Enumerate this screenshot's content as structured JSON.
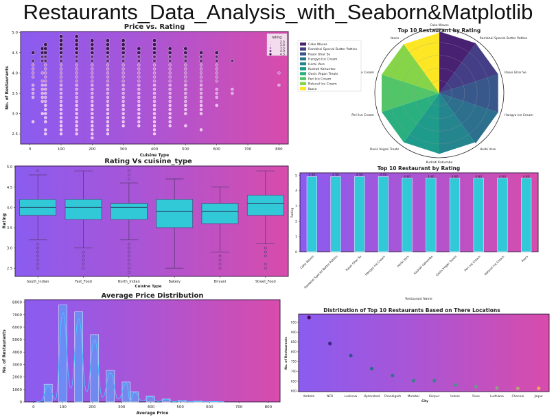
{
  "page": {
    "title": "Restaurants_Data_Analysis_with_Seaborn&Matplotlib"
  },
  "colors": {
    "grad_left": "#8a5cf0",
    "grad_mid": "#a955d6",
    "grad_right": "#d84cab",
    "cyan": "#31c8d8",
    "hist_bar": "#4fb3ff",
    "kde": "#44c8ff"
  },
  "chart_data": [
    {
      "id": "price_vs_rating",
      "type": "scatter",
      "title": "Price vs. Rating",
      "xlabel": "Cuisine Type",
      "ylabel": "No. of Restaurants",
      "xlim": [
        -30,
        830
      ],
      "ylim": [
        2.25,
        5.02
      ],
      "xticks": [
        0,
        100,
        200,
        300,
        400,
        500,
        600,
        700,
        800
      ],
      "yticks": [
        2.5,
        3.0,
        3.5,
        4.0,
        4.5,
        5.0
      ],
      "legend": {
        "title": "rating",
        "entries": [
          "2.5",
          "3.0",
          "3.5",
          "4.0",
          "4.5"
        ],
        "position": "upper right"
      },
      "columns": [
        {
          "x": 10,
          "ratings": [
            2.8,
            3.4,
            3.5,
            3.6,
            3.7,
            3.9,
            4.0,
            4.1,
            4.2,
            4.3,
            4.5
          ]
        },
        {
          "x": 40,
          "ratings": [
            3.0,
            3.3,
            3.4,
            3.5,
            3.6,
            3.7,
            3.8,
            4.0,
            4.3,
            4.4,
            4.5,
            4.6
          ]
        },
        {
          "x": 50,
          "ratings": [
            2.5,
            2.6,
            2.8,
            2.9,
            3.0,
            3.1,
            3.2,
            3.3,
            3.4,
            3.5,
            3.6,
            3.7,
            3.8,
            3.9,
            4.0,
            4.1,
            4.2,
            4.3,
            4.4,
            4.5,
            4.6,
            4.7
          ]
        },
        {
          "x": 100,
          "range": [
            2.5,
            4.9
          ]
        },
        {
          "x": 150,
          "range": [
            2.5,
            4.9
          ]
        },
        {
          "x": 200,
          "range": [
            2.4,
            4.8
          ]
        },
        {
          "x": 250,
          "range": [
            2.5,
            4.8
          ]
        },
        {
          "x": 300,
          "range": [
            2.7,
            4.8
          ]
        },
        {
          "x": 350,
          "range": [
            2.7,
            4.6
          ]
        },
        {
          "x": 400,
          "range": [
            2.5,
            4.8
          ]
        },
        {
          "x": 450,
          "range": [
            2.7,
            4.6
          ]
        },
        {
          "x": 500,
          "range": [
            3.0,
            4.6
          ],
          "extra": [
            2.7
          ]
        },
        {
          "x": 550,
          "range": [
            3.0,
            4.5
          ],
          "extra": [
            2.6
          ]
        },
        {
          "x": 600,
          "ratings": [
            3.2,
            3.4,
            3.5,
            3.6,
            3.8,
            3.9,
            4.0,
            4.1,
            4.2,
            4.3,
            4.4,
            4.5
          ]
        },
        {
          "x": 650,
          "ratings": [
            3.5,
            3.6,
            4.3
          ]
        },
        {
          "x": 800,
          "ratings": [
            3.7,
            4.0
          ]
        }
      ]
    },
    {
      "id": "top10_polar",
      "type": "polar_bar",
      "title": "Top 10 Restaurant by Rating",
      "categories": [
        "Cake Waves",
        "Rambhai Special Butter Patties",
        "Rasoi Ghar Se",
        "Hangyo Ice Cream",
        "Herbi Vore",
        "Kudrati Kahumbo",
        "Oasis Vegan Treats",
        "Peri Ice Cream",
        "Natural Ice Cream",
        "Ibaco"
      ],
      "values": [
        4.9,
        4.9,
        4.9,
        4.9,
        4.8,
        4.8,
        4.8,
        4.8,
        4.8,
        4.8
      ],
      "colors": [
        "#482173",
        "#433e85",
        "#38588c",
        "#2d708e",
        "#25858e",
        "#1e9b8a",
        "#2ab07f",
        "#52c569",
        "#86d549",
        "#fde725"
      ],
      "legend_position": "left"
    },
    {
      "id": "rating_vs_cuisine",
      "type": "box",
      "title": "Rating Vs cuisine_type",
      "xlabel": "Cuisine Type",
      "ylabel": "Rating",
      "ylim": [
        2.3,
        5.02
      ],
      "yticks": [
        2.5,
        3.0,
        3.5,
        4.0,
        4.5,
        5.0
      ],
      "categories": [
        "South_Indian",
        "Fast_Food",
        "North_Indian",
        "Bakery",
        "Biryani",
        "Street_Food"
      ],
      "boxes": [
        {
          "q1": 3.8,
          "median": 4.0,
          "q3": 4.2,
          "whislo": 3.2,
          "whishi": 4.8,
          "fliers": [
            2.5,
            2.6,
            2.7,
            2.8,
            2.9,
            3.0,
            3.1,
            4.9
          ]
        },
        {
          "q1": 3.7,
          "median": 4.0,
          "q3": 4.2,
          "whislo": 3.0,
          "whishi": 4.9,
          "fliers": [
            2.5,
            2.6,
            2.7,
            2.8,
            2.9
          ]
        },
        {
          "q1": 3.7,
          "median": 4.0,
          "q3": 4.1,
          "whislo": 3.2,
          "whishi": 4.6,
          "fliers": [
            2.4,
            2.5,
            2.6,
            2.7,
            2.8,
            2.9,
            3.0,
            3.1,
            4.7,
            4.8,
            4.9
          ]
        },
        {
          "q1": 3.5,
          "median": 3.9,
          "q3": 4.2,
          "whislo": 2.5,
          "whishi": 4.7,
          "fliers": []
        },
        {
          "q1": 3.6,
          "median": 3.9,
          "q3": 4.1,
          "whislo": 2.9,
          "whishi": 4.5,
          "fliers": [
            2.5,
            2.6,
            2.7,
            2.8
          ]
        },
        {
          "q1": 3.8,
          "median": 4.1,
          "q3": 4.3,
          "whislo": 3.1,
          "whishi": 4.9,
          "fliers": [
            2.5,
            2.6,
            2.8,
            2.9,
            3.0
          ]
        }
      ]
    },
    {
      "id": "top10_bar",
      "type": "bar",
      "title": "Top 10 Restaurant by Rating",
      "xlabel": "Restaurant Name",
      "ylabel": "Rating",
      "ylim": [
        0,
        5.15
      ],
      "yticks": [
        0,
        1,
        2,
        3,
        4,
        5
      ],
      "categories": [
        "Cake Waves",
        "Rambhai Special Butter Patties",
        "Rasoi Ghar Se",
        "Hangyo Ice Cream",
        "Herbi Vore",
        "Kudrati Kahumbo",
        "Oasis Vegan Treats",
        "Peri Ice Cream",
        "Natural Ice Cream",
        "Ibaco"
      ],
      "values": [
        4.9,
        4.9,
        4.9,
        4.9,
        4.8,
        4.8,
        4.8,
        4.8,
        4.8,
        4.8
      ],
      "labels": [
        "4.90",
        "4.90",
        "4.90",
        "4.90",
        "4.80",
        "4.80",
        "4.80",
        "4.80",
        "4.80",
        "4.80"
      ]
    },
    {
      "id": "avg_price_hist",
      "type": "histogram",
      "title": "Average Price Distribution",
      "xlabel": "Average Price",
      "ylabel": "No. of Restaurants",
      "xlim": [
        -30,
        840
      ],
      "ylim": [
        0,
        8200
      ],
      "xticks": [
        0,
        100,
        200,
        300,
        400,
        500,
        600,
        700,
        800
      ],
      "yticks": [
        0,
        1000,
        2000,
        3000,
        4000,
        5000,
        6000,
        7000,
        8000
      ],
      "bins": [
        {
          "x0": 36,
          "x1": 64,
          "count": 1420
        },
        {
          "x0": 86,
          "x1": 114,
          "count": 7780
        },
        {
          "x0": 140,
          "x1": 168,
          "count": 7230
        },
        {
          "x0": 194,
          "x1": 222,
          "count": 5400
        },
        {
          "x0": 248,
          "x1": 276,
          "count": 2530
        },
        {
          "x0": 302,
          "x1": 330,
          "count": 1600
        },
        {
          "x0": 330,
          "x1": 358,
          "count": 820
        },
        {
          "x0": 384,
          "x1": 412,
          "count": 480
        },
        {
          "x0": 438,
          "x1": 466,
          "count": 230
        },
        {
          "x0": 492,
          "x1": 520,
          "count": 110
        },
        {
          "x0": 546,
          "x1": 574,
          "count": 70
        },
        {
          "x0": 600,
          "x1": 628,
          "count": 40
        }
      ],
      "kde": true
    },
    {
      "id": "city_distribution",
      "type": "scatter",
      "title": "Distribution of Top 10  Restaurants Based on There Locations",
      "xlabel": "City",
      "ylabel": "No. of Restaurants",
      "ylim": [
        597,
        992
      ],
      "yticks": [
        600,
        650,
        700,
        750,
        800,
        850,
        900,
        950
      ],
      "categories": [
        "Kolkata",
        "NCR",
        "Lucknow",
        "Hyderabad",
        "Chandigarh",
        "Mumbai",
        "Kanpur",
        "Indore",
        "Pune",
        "Ludhiana",
        "Chennai",
        "Jaipur"
      ],
      "values": [
        975,
        842,
        781,
        714,
        679,
        653,
        653,
        631,
        622,
        616,
        614,
        614
      ],
      "colors": [
        "#440154",
        "#3b2884",
        "#34508d",
        "#2e6a8e",
        "#32718a",
        "#3c7f8a",
        "#3c7f8a",
        "#4f8d90",
        "#6c988d",
        "#8e9d83",
        "#b7a36f",
        "#f2a65a"
      ]
    }
  ]
}
